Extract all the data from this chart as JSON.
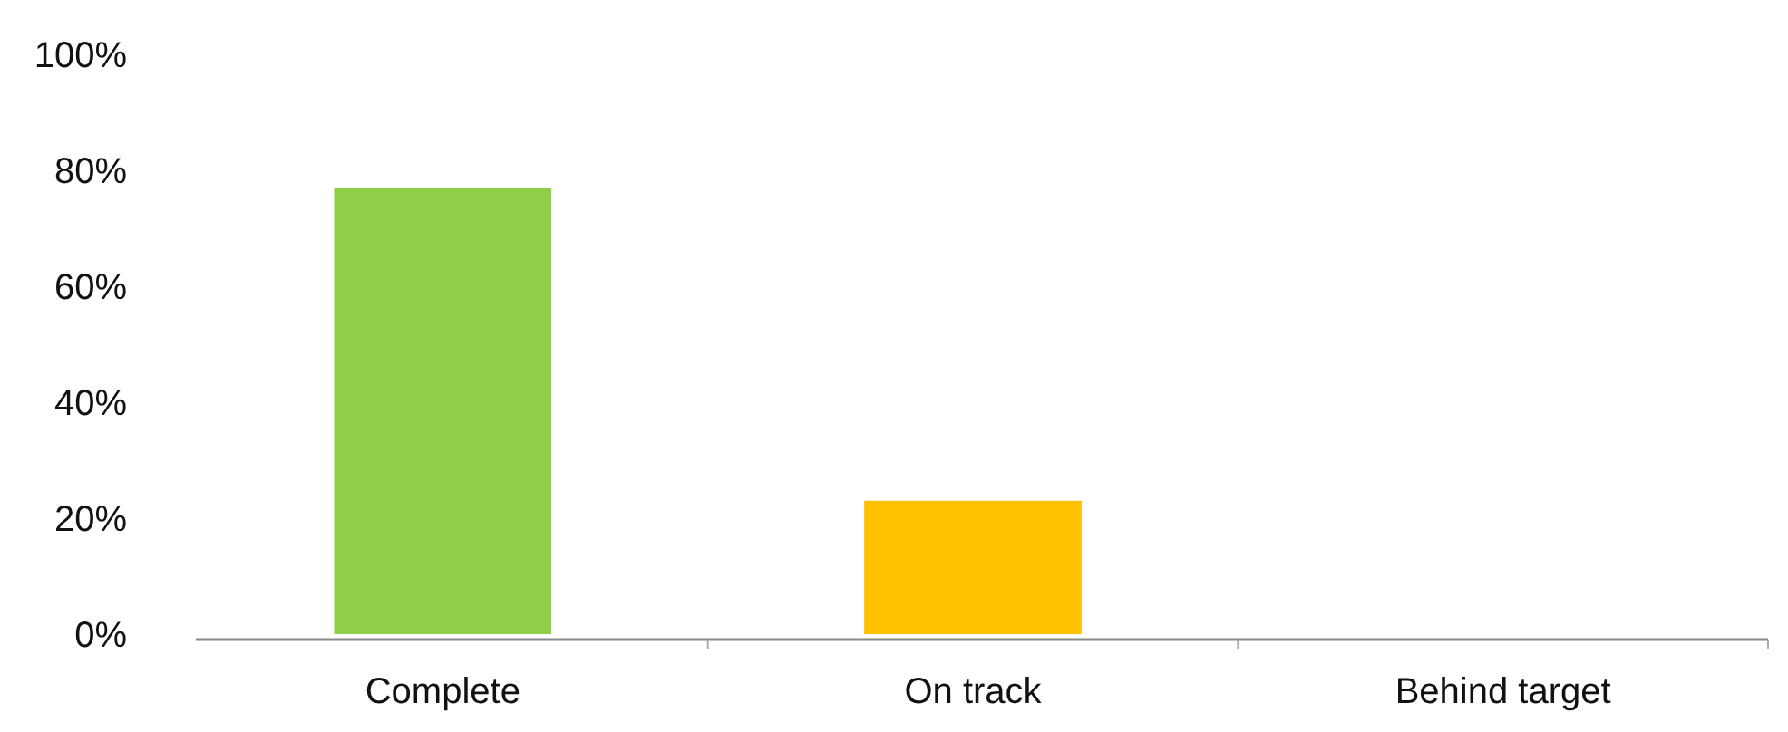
{
  "chart_data": {
    "type": "bar",
    "categories": [
      "Complete",
      "On track",
      "Behind target"
    ],
    "values": [
      77,
      23,
      0
    ],
    "colors": [
      "#8fcf48",
      "#ffc000",
      "#ffc000"
    ],
    "ylim": [
      0,
      100
    ],
    "yticks": [
      {
        "value": 0,
        "label": "0%"
      },
      {
        "value": 20,
        "label": "20%"
      },
      {
        "value": 40,
        "label": "40%"
      },
      {
        "value": 60,
        "label": "60%"
      },
      {
        "value": 80,
        "label": "80%"
      },
      {
        "value": 100,
        "label": "100%"
      }
    ],
    "grid": false
  }
}
